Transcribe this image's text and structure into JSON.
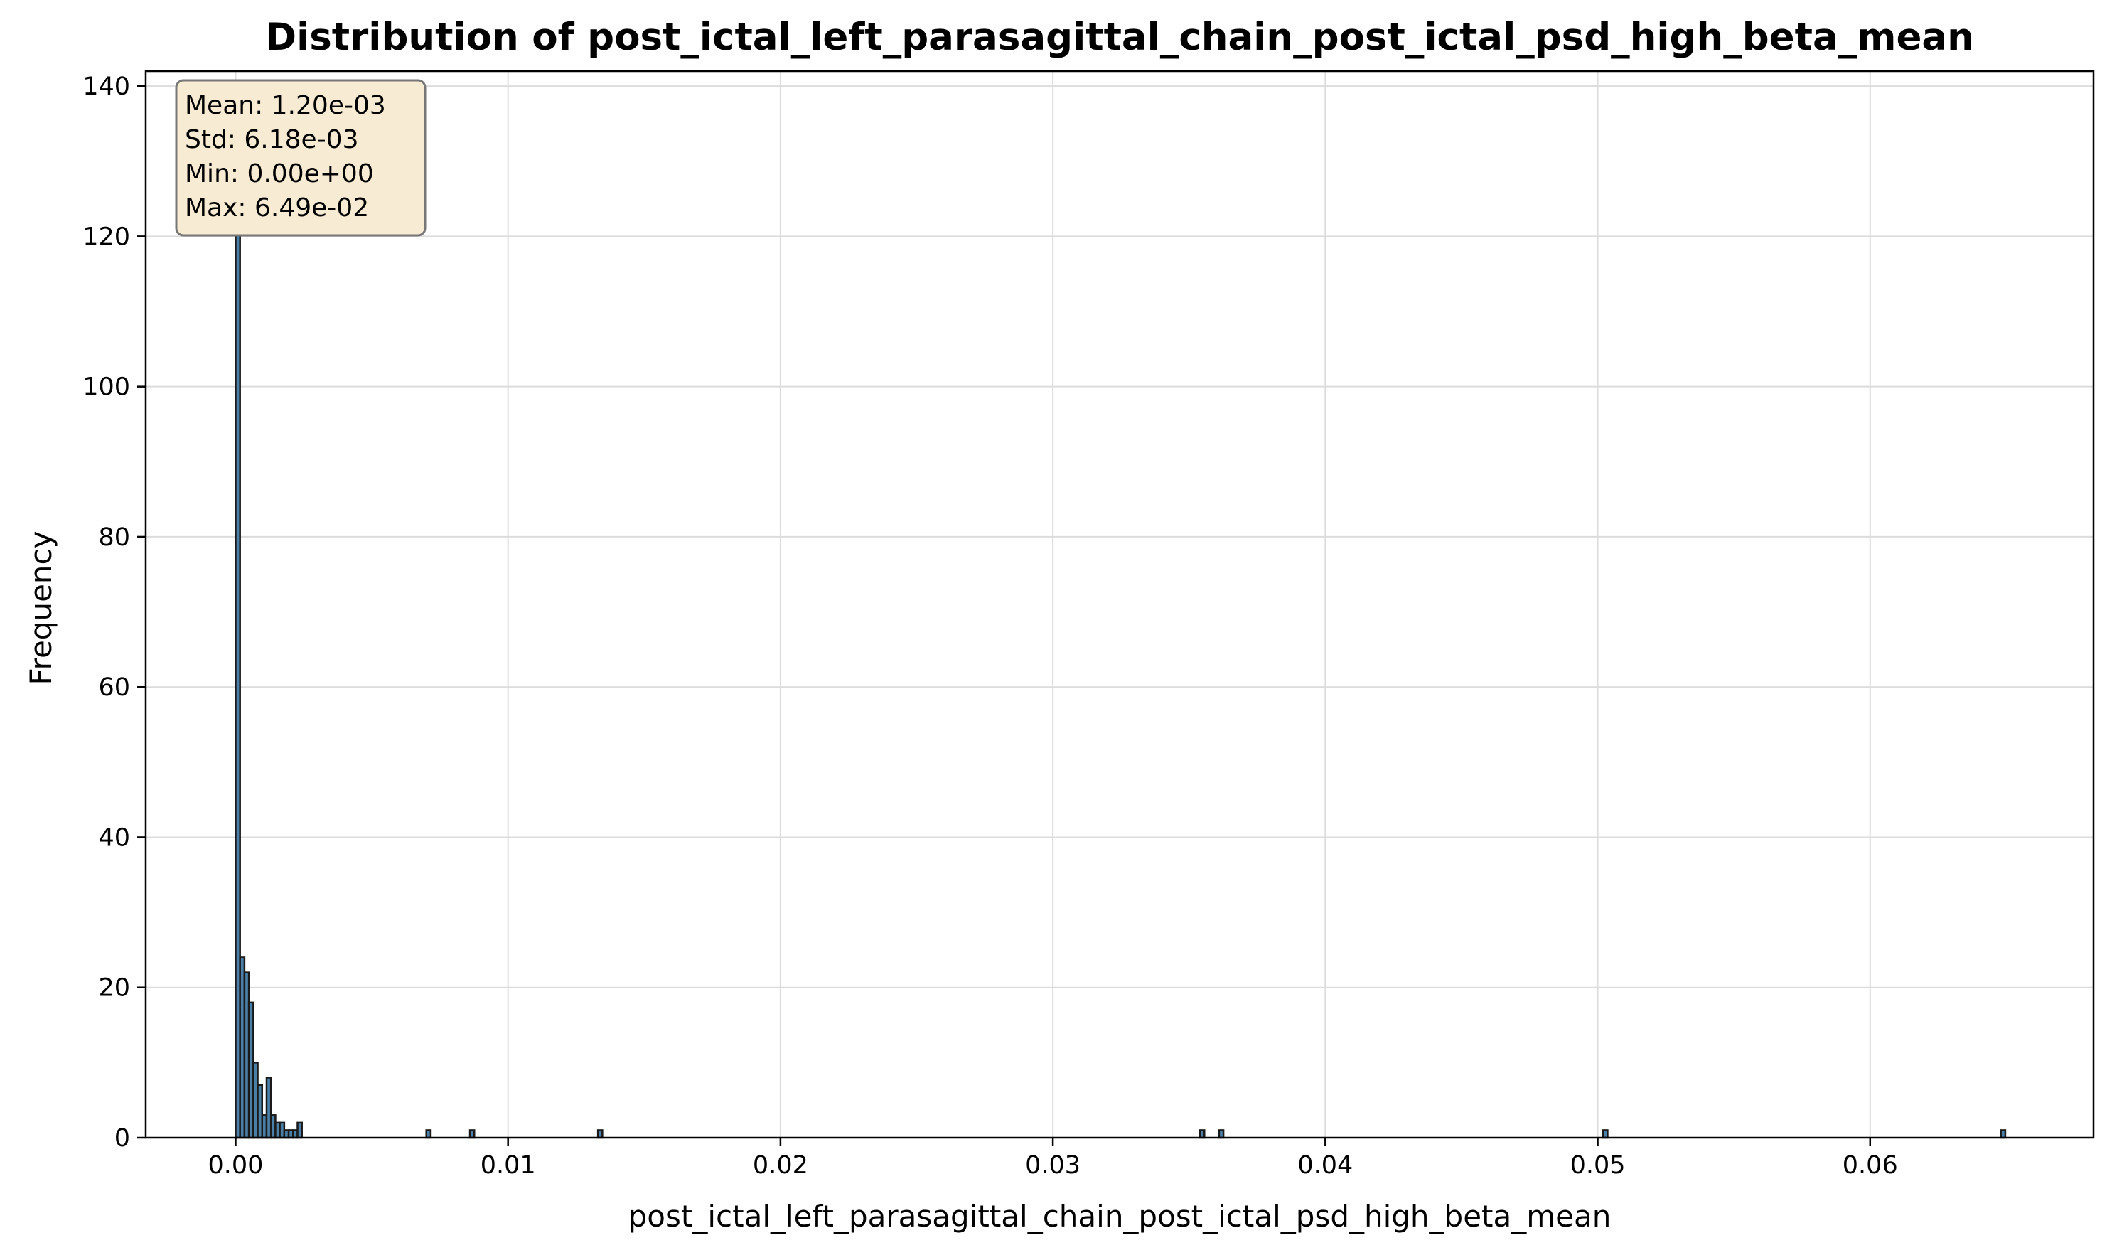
{
  "chart_data": {
    "type": "bar",
    "title": "Distribution of post_ictal_left_parasagittal_chain_post_ictal_psd_high_beta_mean",
    "xlabel": "post_ictal_left_parasagittal_chain_post_ictal_psd_high_beta_mean",
    "ylabel": "Frequency",
    "xlim": [
      -0.0033,
      0.0682
    ],
    "ylim": [
      0,
      142
    ],
    "xticks": [
      0.0,
      0.01,
      0.02,
      0.03,
      0.04,
      0.05,
      0.06
    ],
    "xtick_labels": [
      "0.00",
      "0.01",
      "0.02",
      "0.03",
      "0.04",
      "0.05",
      "0.06"
    ],
    "yticks": [
      0,
      20,
      40,
      60,
      80,
      100,
      120,
      140
    ],
    "ytick_labels": [
      "0",
      "20",
      "40",
      "60",
      "80",
      "100",
      "120",
      "140"
    ],
    "grid": true,
    "bin_width": 0.0001623,
    "bins": [
      {
        "x": 0.0,
        "count": 135
      },
      {
        "x": 0.0001623,
        "count": 24
      },
      {
        "x": 0.0003245,
        "count": 22
      },
      {
        "x": 0.0004868,
        "count": 18
      },
      {
        "x": 0.000649,
        "count": 10
      },
      {
        "x": 0.0008113,
        "count": 7
      },
      {
        "x": 0.0009735,
        "count": 3
      },
      {
        "x": 0.0011358,
        "count": 8
      },
      {
        "x": 0.001298,
        "count": 3
      },
      {
        "x": 0.0014603,
        "count": 2
      },
      {
        "x": 0.0016225,
        "count": 2
      },
      {
        "x": 0.0017848,
        "count": 1
      },
      {
        "x": 0.001947,
        "count": 1
      },
      {
        "x": 0.0021093,
        "count": 1
      },
      {
        "x": 0.0022715,
        "count": 2
      },
      {
        "x": 0.007,
        "count": 1
      },
      {
        "x": 0.0086,
        "count": 1
      },
      {
        "x": 0.0133,
        "count": 1
      },
      {
        "x": 0.0354,
        "count": 1
      },
      {
        "x": 0.0361,
        "count": 1
      },
      {
        "x": 0.0502,
        "count": 1
      },
      {
        "x": 0.0648,
        "count": 1
      }
    ],
    "stats": [
      "Mean: 1.20e-03",
      "Std: 6.18e-03",
      "Min: 0.00e+00",
      "Max: 6.49e-02"
    ],
    "stats_placement": "top-left"
  },
  "colors": {
    "bar_fill": "#4a7fa7",
    "bar_edge": "#1a1a1a",
    "stats_box_fill": "#f8ebd3"
  }
}
